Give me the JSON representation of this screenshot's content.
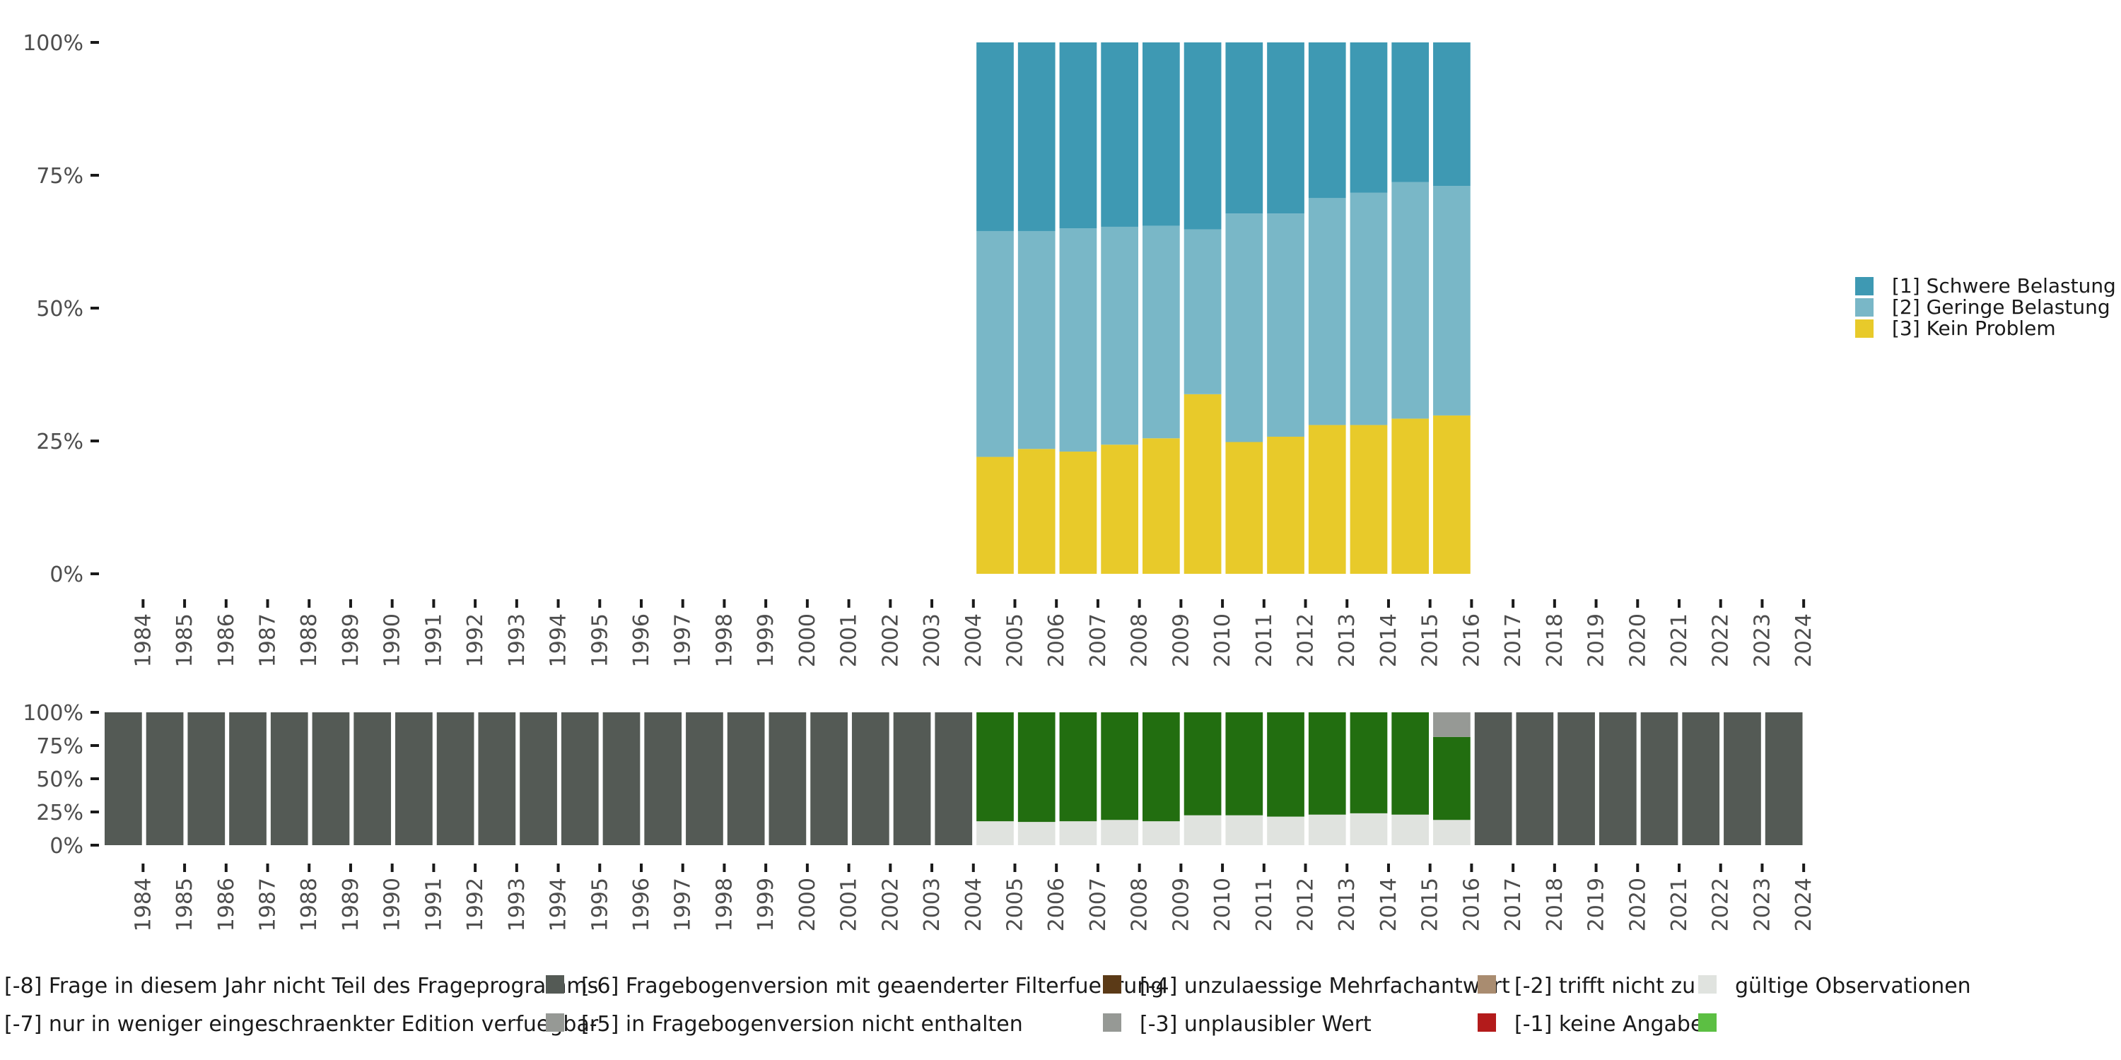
{
  "chart_data": [
    {
      "type": "bar",
      "stacked": true,
      "title": "",
      "xlabel": "",
      "ylabel": "",
      "ylim": [
        0,
        100
      ],
      "y_ticks": [
        "0%",
        "25%",
        "50%",
        "75%",
        "100%"
      ],
      "y_tick_values": [
        0,
        25,
        50,
        75,
        100
      ],
      "categories": [
        "1984",
        "1985",
        "1986",
        "1987",
        "1988",
        "1989",
        "1990",
        "1991",
        "1992",
        "1993",
        "1994",
        "1995",
        "1996",
        "1997",
        "1998",
        "1999",
        "2000",
        "2001",
        "2002",
        "2003",
        "2004",
        "2005",
        "2006",
        "2007",
        "2008",
        "2009",
        "2010",
        "2011",
        "2012",
        "2013",
        "2014",
        "2015",
        "2016",
        "2017",
        "2018",
        "2019",
        "2020",
        "2021",
        "2022",
        "2023",
        "2024"
      ],
      "legend_position": "right",
      "series": [
        {
          "name": "[3] Kein Problem",
          "color": "#e8ca2a",
          "values": [
            null,
            null,
            null,
            null,
            null,
            null,
            null,
            null,
            null,
            null,
            null,
            null,
            null,
            null,
            null,
            null,
            null,
            null,
            null,
            null,
            null,
            22,
            23.5,
            23,
            24.3,
            25.5,
            33.8,
            24.8,
            25.8,
            28,
            28,
            29.2,
            29.8,
            null,
            null,
            null,
            null,
            null,
            null,
            null,
            null
          ]
        },
        {
          "name": "[2] Geringe Belastung",
          "color": "#79b7c7",
          "values": [
            null,
            null,
            null,
            null,
            null,
            null,
            null,
            null,
            null,
            null,
            null,
            null,
            null,
            null,
            null,
            null,
            null,
            null,
            null,
            null,
            null,
            42.5,
            41,
            42,
            41,
            40,
            31,
            43,
            42,
            42.7,
            43.7,
            44.5,
            43.2,
            null,
            null,
            null,
            null,
            null,
            null,
            null,
            null
          ]
        },
        {
          "name": "[1] Schwere Belastung",
          "color": "#3e99b3",
          "values": [
            null,
            null,
            null,
            null,
            null,
            null,
            null,
            null,
            null,
            null,
            null,
            null,
            null,
            null,
            null,
            null,
            null,
            null,
            null,
            null,
            null,
            35.5,
            35.5,
            35,
            34.7,
            34.5,
            35.2,
            32.2,
            32.2,
            29.3,
            28.3,
            26.3,
            27,
            null,
            null,
            null,
            null,
            null,
            null,
            null,
            null
          ]
        }
      ]
    },
    {
      "type": "bar",
      "stacked": true,
      "title": "",
      "ylim": [
        0,
        100
      ],
      "y_ticks": [
        "0%",
        "25%",
        "50%",
        "75%",
        "100%"
      ],
      "y_tick_values": [
        0,
        25,
        50,
        75,
        100
      ],
      "categories": [
        "1984",
        "1985",
        "1986",
        "1987",
        "1988",
        "1989",
        "1990",
        "1991",
        "1992",
        "1993",
        "1994",
        "1995",
        "1996",
        "1997",
        "1998",
        "1999",
        "2000",
        "2001",
        "2002",
        "2003",
        "2004",
        "2005",
        "2006",
        "2007",
        "2008",
        "2009",
        "2010",
        "2011",
        "2012",
        "2013",
        "2014",
        "2015",
        "2016",
        "2017",
        "2018",
        "2019",
        "2020",
        "2021",
        "2022",
        "2023",
        "2024"
      ],
      "legend_position": "bottom",
      "series": [
        {
          "name": "gültige Observationen",
          "color": "#e0e3df",
          "values": [
            0,
            0,
            0,
            0,
            0,
            0,
            0,
            0,
            0,
            0,
            0,
            0,
            0,
            0,
            0,
            0,
            0,
            0,
            0,
            0,
            0,
            18,
            17.5,
            18,
            19,
            18,
            22.5,
            22.5,
            21.5,
            23,
            24,
            23,
            19,
            0,
            0,
            0,
            0,
            0,
            0,
            0,
            0
          ]
        },
        {
          "name": "[-1] keine Angabe",
          "color": "#5cbf43",
          "values": [
            0,
            0,
            0,
            0,
            0,
            0,
            0,
            0,
            0,
            0,
            0,
            0,
            0,
            0,
            0,
            0,
            0,
            0,
            0,
            0,
            0,
            0,
            0,
            0,
            0,
            0,
            0,
            0,
            0,
            0,
            0,
            0,
            0,
            0,
            0,
            0,
            0,
            0,
            0,
            0,
            0
          ]
        },
        {
          "name": "[-2] trifft nicht zu",
          "color": "#226e10",
          "values": [
            0,
            0,
            0,
            0,
            0,
            0,
            0,
            0,
            0,
            0,
            0,
            0,
            0,
            0,
            0,
            0,
            0,
            0,
            0,
            0,
            0,
            82,
            82.5,
            82,
            81,
            82,
            77.5,
            77.5,
            78.5,
            77,
            76,
            77,
            62.5,
            0,
            0,
            0,
            0,
            0,
            0,
            0,
            0
          ]
        },
        {
          "name": "[-3] unplausibler Wert",
          "color": "#b31b1b",
          "values": [
            0,
            0,
            0,
            0,
            0,
            0,
            0,
            0,
            0,
            0,
            0,
            0,
            0,
            0,
            0,
            0,
            0,
            0,
            0,
            0,
            0,
            0,
            0,
            0,
            0,
            0,
            0,
            0,
            0,
            0,
            0,
            0,
            0,
            0,
            0,
            0,
            0,
            0,
            0,
            0,
            0
          ]
        },
        {
          "name": "[-4] unzulaessige Mehrfachantwort",
          "color": "#a98c70",
          "values": [
            0,
            0,
            0,
            0,
            0,
            0,
            0,
            0,
            0,
            0,
            0,
            0,
            0,
            0,
            0,
            0,
            0,
            0,
            0,
            0,
            0,
            0,
            0,
            0,
            0,
            0,
            0,
            0,
            0,
            0,
            0,
            0,
            0,
            0,
            0,
            0,
            0,
            0,
            0,
            0,
            0
          ]
        },
        {
          "name": "[-5] in Fragebogenversion nicht enthalten",
          "color": "#969995",
          "values": [
            0,
            0,
            0,
            0,
            0,
            0,
            0,
            0,
            0,
            0,
            0,
            0,
            0,
            0,
            0,
            0,
            0,
            0,
            0,
            0,
            0,
            0,
            0,
            0,
            0,
            0,
            0,
            0,
            0,
            0,
            0,
            0,
            18.5,
            0,
            0,
            0,
            0,
            0,
            0,
            0,
            0
          ]
        },
        {
          "name": "[-6] Fragebogenversion mit geaenderter Filterfuehrung",
          "color": "#5b3a17",
          "values": [
            0,
            0,
            0,
            0,
            0,
            0,
            0,
            0,
            0,
            0,
            0,
            0,
            0,
            0,
            0,
            0,
            0,
            0,
            0,
            0,
            0,
            0,
            0,
            0,
            0,
            0,
            0,
            0,
            0,
            0,
            0,
            0,
            0,
            0,
            0,
            0,
            0,
            0,
            0,
            0,
            0
          ]
        },
        {
          "name": "[-7] nur in weniger eingeschraenkter Edition verfuegbar",
          "color": "#969995",
          "values": [
            0,
            0,
            0,
            0,
            0,
            0,
            0,
            0,
            0,
            0,
            0,
            0,
            0,
            0,
            0,
            0,
            0,
            0,
            0,
            0,
            0,
            0,
            0,
            0,
            0,
            0,
            0,
            0,
            0,
            0,
            0,
            0,
            0,
            0,
            0,
            0,
            0,
            0,
            0,
            0,
            0
          ]
        },
        {
          "name": "[-8] Frage in diesem Jahr nicht Teil des Frageprogramms",
          "color": "#545a55",
          "values": [
            100,
            100,
            100,
            100,
            100,
            100,
            100,
            100,
            100,
            100,
            100,
            100,
            100,
            100,
            100,
            100,
            100,
            100,
            100,
            100,
            100,
            0,
            0,
            0,
            0,
            0,
            0,
            0,
            0,
            0,
            0,
            0,
            0,
            100,
            100,
            100,
            100,
            100,
            100,
            100,
            100
          ]
        }
      ]
    }
  ],
  "bottom_legend": [
    {
      "label": "[-8] Frage in diesem Jahr nicht Teil des Frageprogramms",
      "color": "#545a55"
    },
    {
      "label": "[-6] Fragebogenversion mit geaenderter Filterfuehrung",
      "color": "#5b3a17"
    },
    {
      "label": "[-4] unzulaessige Mehrfachantwort",
      "color": "#a98c70"
    },
    {
      "label": "[-2] trifft nicht zu",
      "color": "#226e10"
    },
    {
      "label": "gültige Observationen",
      "color": "#e0e3df"
    },
    {
      "label": "[-7] nur in weniger eingeschraenkter Edition verfuegbar",
      "color": "#969995"
    },
    {
      "label": "[-5] in Fragebogenversion nicht enthalten",
      "color": "#969995"
    },
    {
      "label": "[-3] unplausibler Wert",
      "color": "#b31b1b"
    },
    {
      "label": "[-1] keine Angabe",
      "color": "#5cbf43"
    }
  ],
  "top_legend": [
    {
      "label": "[1] Schwere Belastung",
      "color": "#3e99b3"
    },
    {
      "label": "[2] Geringe Belastung",
      "color": "#79b7c7"
    },
    {
      "label": "[3] Kein Problem",
      "color": "#e8ca2a"
    }
  ]
}
